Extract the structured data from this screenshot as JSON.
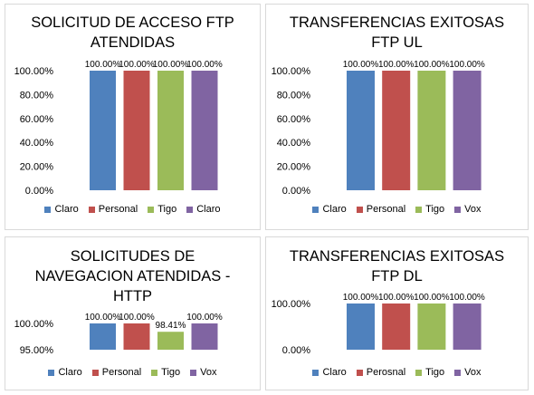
{
  "colors": {
    "claro": "#4f81bd",
    "personal": "#c0504d",
    "tigo": "#9bbb59",
    "purple": "#8064a2"
  },
  "chart_data": [
    {
      "type": "bar",
      "title": "SOLICITUD DE ACCESO FTP\nATENDIDAS",
      "categories": [
        "Claro",
        "Personal",
        "Tigo",
        "Claro"
      ],
      "values": [
        100.0,
        100.0,
        100.0,
        100.0
      ],
      "data_labels": [
        "100.00%",
        "100.00%",
        "100.00%",
        "100.00%"
      ],
      "yticks": [
        0,
        20,
        40,
        60,
        80,
        100
      ],
      "ytick_labels": [
        "0.00%",
        "20.00%",
        "40.00%",
        "60.00%",
        "80.00%",
        "100.00%"
      ],
      "ylim": [
        0,
        100
      ],
      "legend": [
        "Claro",
        "Personal",
        "Tigo",
        "Claro"
      ],
      "legend_position": "bottom",
      "grid": false
    },
    {
      "type": "bar",
      "title": "TRANSFERENCIAS EXITOSAS\nFTP UL",
      "categories": [
        "Claro",
        "Personal",
        "Tigo",
        "Vox"
      ],
      "values": [
        100.0,
        100.0,
        100.0,
        100.0
      ],
      "data_labels": [
        "100.00%",
        "100.00%",
        "100.00%",
        "100.00%"
      ],
      "yticks": [
        0,
        20,
        40,
        60,
        80,
        100
      ],
      "ytick_labels": [
        "0.00%",
        "20.00%",
        "40.00%",
        "60.00%",
        "80.00%",
        "100.00%"
      ],
      "ylim": [
        0,
        100
      ],
      "legend": [
        "Claro",
        "Personal",
        "Tigo",
        "Vox"
      ],
      "legend_position": "bottom",
      "grid": false
    },
    {
      "type": "bar",
      "title": "SOLICITUDES DE\nNAVEGACION ATENDIDAS -\nHTTP",
      "categories": [
        "Claro",
        "Personal",
        "Tigo",
        "Vox"
      ],
      "values": [
        100.0,
        100.0,
        98.41,
        100.0
      ],
      "data_labels": [
        "100.00%",
        "100.00%",
        "98.41%",
        "100.00%"
      ],
      "yticks": [
        95,
        100
      ],
      "ytick_labels": [
        "95.00%",
        "100.00%"
      ],
      "ylim": [
        95,
        100
      ],
      "legend": [
        "Claro",
        "Personal",
        "Tigo",
        "Vox"
      ],
      "legend_position": "bottom",
      "grid": false
    },
    {
      "type": "bar",
      "title": "TRANSFERENCIAS EXITOSAS\nFTP DL",
      "categories": [
        "Claro",
        "Perosnal",
        "Tigo",
        "Vox"
      ],
      "values": [
        100.0,
        100.0,
        100.0,
        100.0
      ],
      "data_labels": [
        "100.00%",
        "100.00%",
        "100.00%",
        "100.00%"
      ],
      "yticks": [
        0,
        100
      ],
      "ytick_labels": [
        "0.00%",
        "100.00%"
      ],
      "ylim": [
        0,
        100
      ],
      "legend": [
        "Claro",
        "Perosnal",
        "Tigo",
        "Vox"
      ],
      "legend_position": "bottom",
      "grid": false
    }
  ]
}
